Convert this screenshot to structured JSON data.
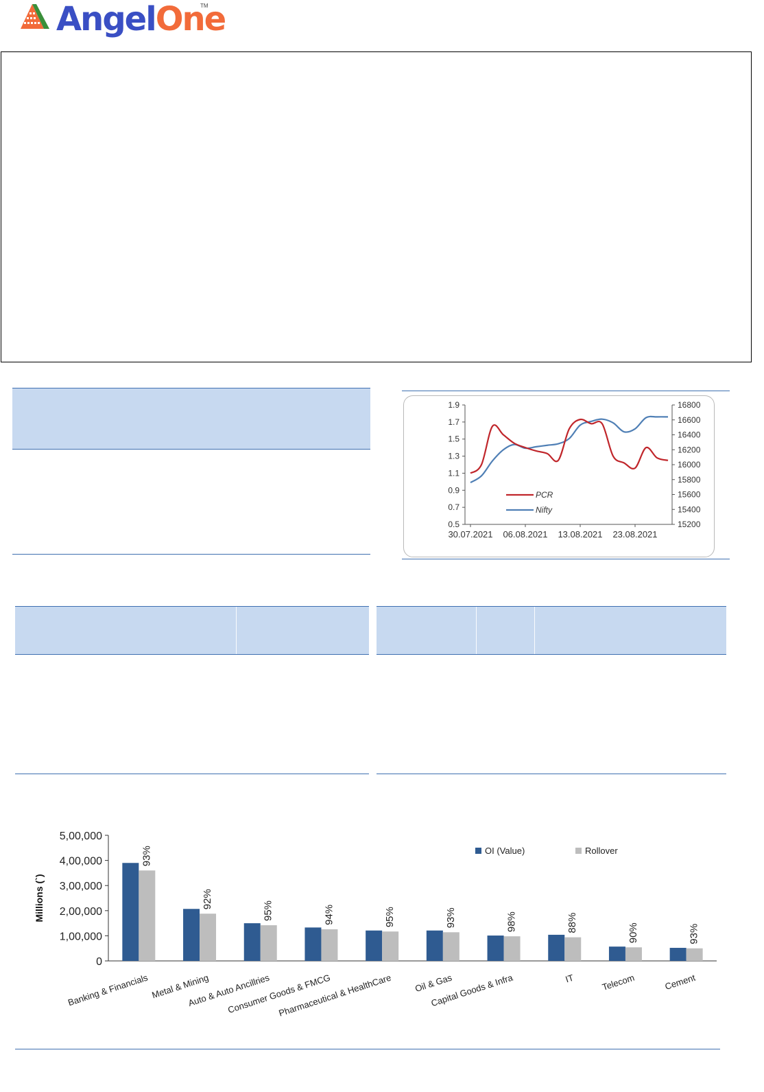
{
  "logo": {
    "brand_part1": "Angel",
    "brand_part2": "One",
    "trademark": "TM"
  },
  "colors": {
    "header_fill": "#c7d9f0",
    "rule_blue": "#3e6fb0",
    "pcr_line": "#c0262b",
    "nifty_line": "#4f7fb5",
    "oi_bar": "#2f5b91",
    "rollover_bar": "#bdbdbd"
  },
  "chart_data": [
    {
      "type": "line",
      "x_ticks": [
        "30.07.2021",
        "06.08.2021",
        "13.08.2021",
        "23.08.2021"
      ],
      "left_axis": {
        "ylim": [
          0.5,
          1.9
        ],
        "ticks": [
          "1.9",
          "1.7",
          "1.5",
          "1.3",
          "1.1",
          "0.9",
          "0.7",
          "0.5"
        ]
      },
      "right_axis": {
        "ylim": [
          15200,
          16800
        ],
        "ticks": [
          "16800",
          "16600",
          "16400",
          "16200",
          "16000",
          "15800",
          "15600",
          "15400",
          "15200"
        ]
      },
      "legend_placement": "bottom-left",
      "series": [
        {
          "name": "PCR",
          "axis": "left",
          "values": [
            1.1,
            1.2,
            1.65,
            1.55,
            1.45,
            1.4,
            1.36,
            1.33,
            1.25,
            1.62,
            1.73,
            1.68,
            1.68,
            1.3,
            1.22,
            1.16,
            1.4,
            1.28,
            1.25
          ]
        },
        {
          "name": "Nifty",
          "axis": "right",
          "values": [
            15760,
            15850,
            16050,
            16200,
            16270,
            16220,
            16240,
            16260,
            16280,
            16350,
            16530,
            16580,
            16610,
            16560,
            16440,
            16480,
            16630,
            16640,
            16640
          ]
        }
      ]
    },
    {
      "type": "bar",
      "ylabel": "Millions (`)",
      "ylim": [
        0,
        500000
      ],
      "y_ticks": [
        "5,00,000",
        "4,00,000",
        "3,00,000",
        "2,00,000",
        "1,00,000",
        "0"
      ],
      "legend_placement": "top-right",
      "categories": [
        "Banking & Financials",
        "Metal & Mining",
        "Auto & Auto Ancillries",
        "Consumer Goods & FMCG",
        "Pharmaceutical & HealthCare",
        "Oil & Gas",
        "Capital Goods & Infra",
        "IT",
        "Telecom",
        "Cement"
      ],
      "series": [
        {
          "name": "OI (Value)",
          "values": [
            390000,
            207000,
            150000,
            133000,
            121000,
            121000,
            101000,
            104000,
            57000,
            52000
          ]
        },
        {
          "name": "Rollover",
          "values": [
            360000,
            188000,
            142000,
            126000,
            117000,
            114000,
            98000,
            94000,
            54000,
            50000
          ]
        }
      ],
      "data_labels": [
        "93%",
        "92%",
        "95%",
        "94%",
        "95%",
        "93%",
        "98%",
        "88%",
        "90%",
        "93%"
      ]
    }
  ]
}
